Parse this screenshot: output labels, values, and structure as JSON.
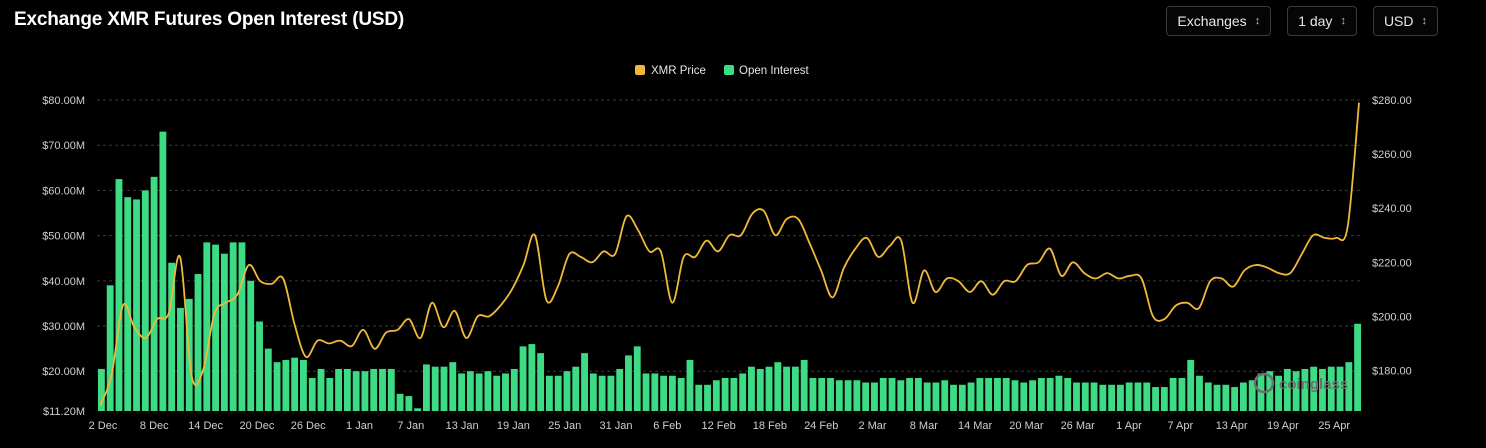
{
  "header": {
    "title": "Exchange XMR Futures Open Interest (USD)"
  },
  "controls": [
    {
      "label": "Exchanges",
      "icon": "chevron-up-down-icon"
    },
    {
      "label": "1 day",
      "icon": "chevron-up-down-icon"
    },
    {
      "label": "USD",
      "icon": "chevron-up-down-icon"
    }
  ],
  "watermark": "coinglass",
  "colors": {
    "price": "#f0b93a",
    "oi": "#3ddc84",
    "grid": "#3a3a3a",
    "background": "#000000"
  },
  "chart_data": {
    "type": "bar",
    "legend": [
      "XMR Price",
      "Open Interest"
    ],
    "legend_position": "top-center",
    "grid": true,
    "x_tick_labels": [
      "2 Dec",
      "8 Dec",
      "14 Dec",
      "20 Dec",
      "26 Dec",
      "1 Jan",
      "7 Jan",
      "13 Jan",
      "19 Jan",
      "25 Jan",
      "31 Jan",
      "6 Feb",
      "12 Feb",
      "18 Feb",
      "24 Feb",
      "2 Mar",
      "8 Mar",
      "14 Mar",
      "20 Mar",
      "26 Mar",
      "1 Apr",
      "7 Apr",
      "13 Apr",
      "19 Apr",
      "25 Apr"
    ],
    "y_left_ticks": [
      "$11.20M",
      "$20.00M",
      "$30.00M",
      "$40.00M",
      "$50.00M",
      "$60.00M",
      "$70.00M",
      "$80.00M"
    ],
    "y_left_range": [
      11.2,
      80
    ],
    "y_right_ticks": [
      "$180.00",
      "$200.00",
      "$220.00",
      "$240.00",
      "$260.00",
      "$280.00"
    ],
    "y_right_range": [
      165,
      280
    ],
    "series": [
      {
        "name": "Open Interest",
        "kind": "bar",
        "axis": "left",
        "unit": "USD millions",
        "values": [
          20.5,
          39,
          62.5,
          58.5,
          58,
          60,
          63,
          73,
          44,
          34,
          36,
          41.5,
          48.5,
          48,
          46,
          48.5,
          48.5,
          40,
          31,
          25,
          22,
          22.5,
          23,
          22.5,
          18.5,
          20.5,
          18.5,
          20.5,
          20.5,
          20,
          20,
          20.5,
          20.5,
          20.5,
          15,
          14.5,
          11.8,
          21.5,
          21,
          21,
          22,
          19.5,
          20,
          19.5,
          20,
          19,
          19.5,
          20.5,
          25.5,
          26,
          24,
          19,
          19,
          20,
          21,
          24,
          19.5,
          19,
          19,
          20.5,
          23.5,
          25.5,
          19.5,
          19.5,
          19,
          19,
          18.5,
          22.5,
          17,
          17,
          18,
          18.5,
          18.5,
          19.5,
          21,
          20.5,
          21,
          22,
          21,
          21,
          22.5,
          18.5,
          18.5,
          18.5,
          18,
          18,
          18,
          17.5,
          17.5,
          18.5,
          18.5,
          18,
          18.5,
          18.5,
          17.5,
          17.5,
          18,
          17,
          17,
          17.5,
          18.5,
          18.5,
          18.5,
          18.5,
          18,
          17.5,
          18,
          18.5,
          18.5,
          19,
          18.5,
          17.5,
          17.5,
          17.5,
          17,
          17,
          17,
          17.5,
          17.5,
          17.5,
          16.5,
          16.5,
          18.5,
          18.5,
          22.5,
          19,
          17.5,
          17,
          17,
          16.5,
          17.5,
          18,
          19.5,
          20,
          19,
          20.5,
          20,
          20.5,
          21,
          20.5,
          21,
          21,
          22,
          30.5
        ]
      },
      {
        "name": "XMR Price",
        "kind": "line",
        "axis": "right",
        "unit": "USD",
        "values": [
          167,
          178,
          204,
          196,
          192,
          199,
          201,
          222,
          178,
          180,
          201,
          205,
          208,
          219,
          213,
          212,
          214,
          197,
          185,
          191,
          190,
          191,
          189,
          195,
          188,
          194,
          195,
          199,
          192,
          205,
          196,
          202,
          192,
          200,
          200,
          204,
          210,
          219,
          230,
          206,
          211,
          223,
          222,
          220,
          224,
          223,
          237,
          232,
          224,
          224,
          205,
          222,
          222,
          228,
          224,
          230,
          230,
          238,
          239,
          230,
          236,
          236,
          227,
          217,
          207,
          218,
          225,
          229,
          222,
          226,
          228,
          205,
          217,
          209,
          214,
          213,
          209,
          213,
          208,
          213,
          213,
          219,
          220,
          225,
          215,
          220,
          216,
          214,
          216,
          214,
          215,
          214,
          200,
          199,
          204,
          205,
          203,
          213,
          214,
          211,
          217,
          219,
          218,
          216,
          216,
          223,
          230,
          229,
          229,
          233,
          279
        ]
      }
    ]
  }
}
